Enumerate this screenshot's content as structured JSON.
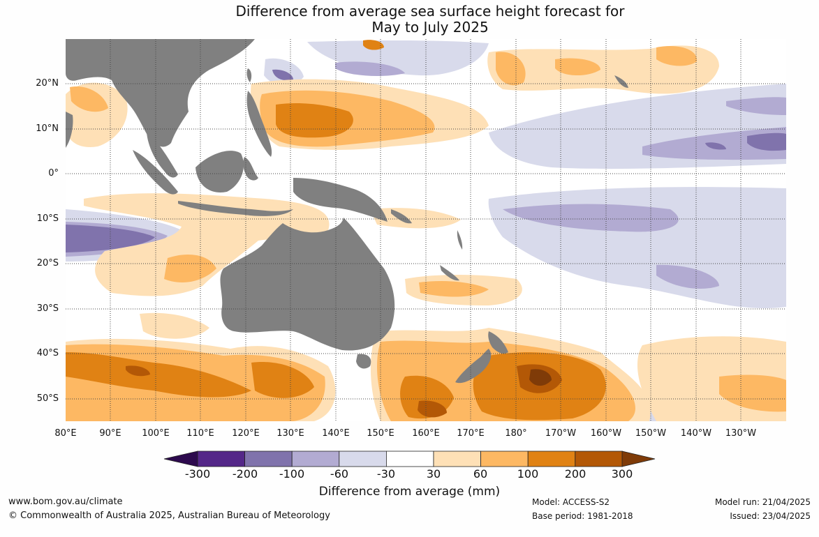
{
  "title": {
    "line1": "Difference from average sea surface height forecast for",
    "line2": "May to July 2025"
  },
  "map": {
    "lat_labels": [
      "20°N",
      "10°N",
      "0°",
      "10°S",
      "20°S",
      "30°S",
      "40°S",
      "50°S"
    ],
    "lon_labels": [
      "80°E",
      "90°E",
      "100°E",
      "110°E",
      "120°E",
      "130°E",
      "140°E",
      "150°E",
      "160°E",
      "170°E",
      "180°",
      "170°W",
      "160°W",
      "150°W",
      "140°W",
      "130°W"
    ],
    "land_color": "#808080",
    "ocean_color": "#ffffff"
  },
  "colorbar": {
    "title": "Difference from average (mm)",
    "tick_labels": [
      "-300",
      "-200",
      "-100",
      "-60",
      "-30",
      "30",
      "60",
      "100",
      "200",
      "300"
    ],
    "colors": [
      "#2d0a4e",
      "#542788",
      "#8073ac",
      "#b2abd2",
      "#d8daeb",
      "#ffffff",
      "#fee0b6",
      "#fdb863",
      "#e08214",
      "#b35806",
      "#7f3b08"
    ]
  },
  "footer": {
    "website": "www.bom.gov.au/climate",
    "copyright": "© Commonwealth of Australia 2025, Australian Bureau of Meteorology",
    "model": "Model: ACCESS-S2",
    "base_period": "Base period: 1981-2018",
    "model_run": "Model run: 21/04/2025",
    "issued": "Issued: 23/04/2025"
  }
}
